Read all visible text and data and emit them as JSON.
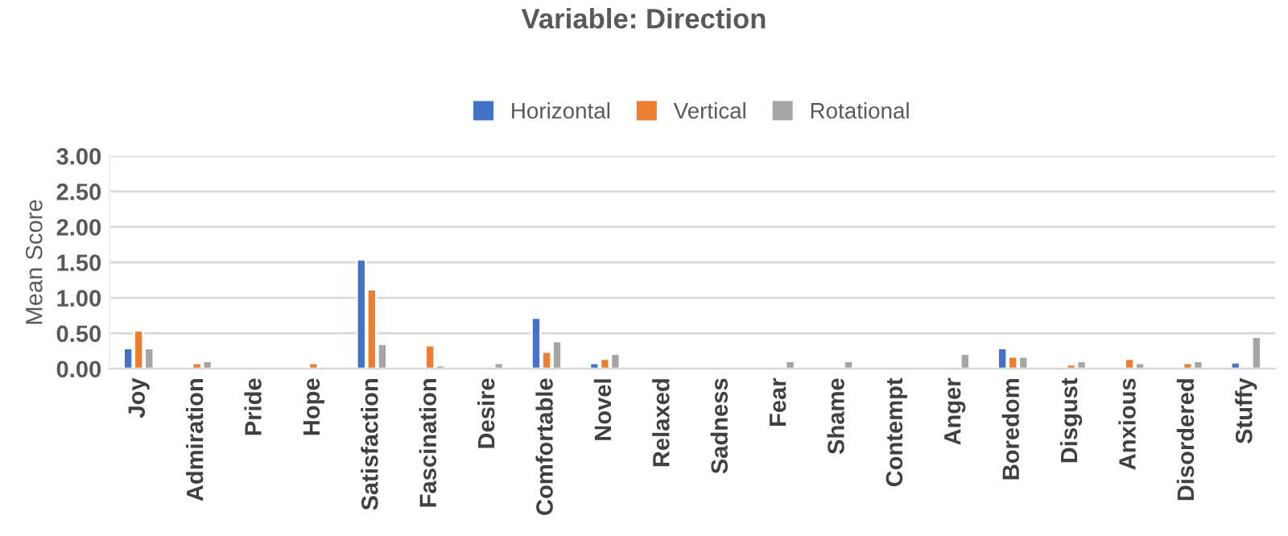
{
  "chart_data": {
    "type": "bar",
    "title": "Variable: Direction",
    "ylabel": "Mean Score",
    "categories": [
      "Joy",
      "Admiration",
      "Pride",
      "Hope",
      "Satisfaction",
      "Fascination",
      "Desire",
      "Comfortable",
      "Novel",
      "Relaxed",
      "Sadness",
      "Fear",
      "Shame",
      "Contempt",
      "Anger",
      "Boredom",
      "Disgust",
      "Anxious",
      "Disordered",
      "Stuffy"
    ],
    "series": [
      {
        "name": "Horizontal",
        "color": "#4472c4",
        "values": [
          0.29,
          null,
          null,
          null,
          1.54,
          null,
          null,
          0.72,
          0.08,
          null,
          null,
          null,
          null,
          null,
          null,
          0.29,
          null,
          null,
          null,
          0.09
        ]
      },
      {
        "name": "Vertical",
        "color": "#ed7d31",
        "values": [
          0.54,
          0.08,
          null,
          0.08,
          1.12,
          0.33,
          null,
          0.24,
          0.14,
          null,
          null,
          null,
          null,
          null,
          null,
          0.17,
          0.06,
          0.14,
          0.08,
          null
        ]
      },
      {
        "name": "Rotational",
        "color": "#a5a5a5",
        "values": [
          0.29,
          0.11,
          null,
          null,
          0.35,
          0.05,
          0.08,
          0.39,
          0.21,
          null,
          null,
          0.11,
          0.11,
          null,
          0.21,
          0.17,
          0.11,
          0.08,
          0.11,
          0.45
        ]
      }
    ],
    "ylim": [
      0,
      3
    ],
    "yticks": [
      {
        "value": 0,
        "label": "0.00"
      },
      {
        "value": 0.5,
        "label": "0.50"
      },
      {
        "value": 1,
        "label": "1.00"
      },
      {
        "value": 1.5,
        "label": "1.50"
      },
      {
        "value": 2,
        "label": "2.00"
      },
      {
        "value": 2.5,
        "label": "2.50"
      },
      {
        "value": 3,
        "label": "3.00"
      }
    ],
    "grid": "y",
    "legend": "top"
  }
}
